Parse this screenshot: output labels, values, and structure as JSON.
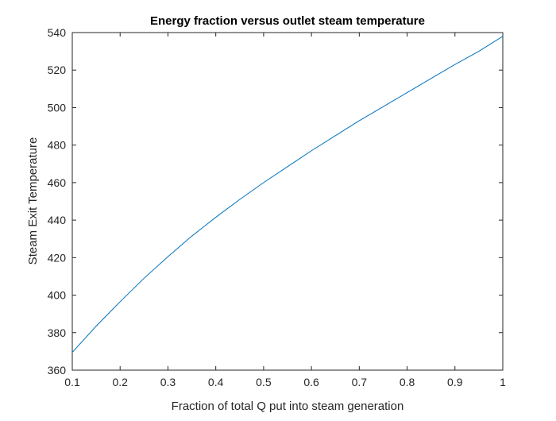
{
  "chart_data": {
    "type": "line",
    "title": "Energy fraction versus outlet steam temperature",
    "xlabel": "Fraction of total Q put into steam generation",
    "ylabel": "Steam Exit Temperature",
    "xlim": [
      0.1,
      1
    ],
    "ylim": [
      360,
      540
    ],
    "xticks": [
      0.1,
      0.2,
      0.3,
      0.4,
      0.5,
      0.6,
      0.7,
      0.8,
      0.9,
      1
    ],
    "xtick_labels": [
      "0.1",
      "0.2",
      "0.3",
      "0.4",
      "0.5",
      "0.6",
      "0.7",
      "0.8",
      "0.9",
      "1"
    ],
    "yticks": [
      360,
      380,
      400,
      420,
      440,
      460,
      480,
      500,
      520,
      540
    ],
    "ytick_labels": [
      "360",
      "380",
      "400",
      "420",
      "440",
      "460",
      "480",
      "500",
      "520",
      "540"
    ],
    "grid": false,
    "line_color": "#0072BD",
    "series": [
      {
        "x": [
          0.1,
          0.15,
          0.2,
          0.25,
          0.3,
          0.35,
          0.4,
          0.45,
          0.5,
          0.55,
          0.6,
          0.65,
          0.7,
          0.75,
          0.8,
          0.85,
          0.9,
          0.95,
          1.0
        ],
        "y": [
          369.5,
          383.5,
          396.5,
          409.0,
          420.5,
          431.5,
          441.5,
          451.0,
          460.0,
          468.5,
          477.0,
          485.0,
          493.0,
          500.5,
          508.0,
          515.5,
          523.0,
          530.0,
          538.0
        ]
      }
    ]
  }
}
